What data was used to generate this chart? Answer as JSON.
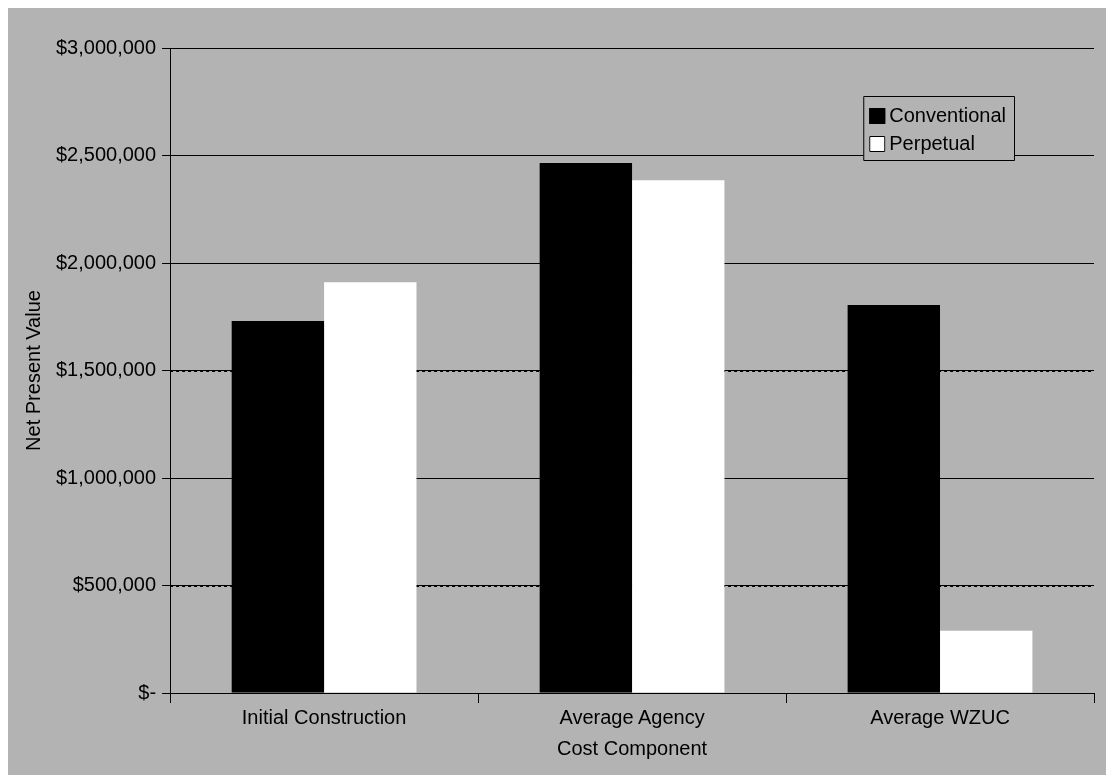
{
  "chart_data": {
    "type": "bar",
    "xlabel": "Cost Component",
    "ylabel": "Net Present Value",
    "categories": [
      "Initial Construction",
      "Average Agency",
      "Average WZUC"
    ],
    "series": [
      {
        "name": "Conventional",
        "color": "#000000",
        "values": [
          1730000,
          2465000,
          1805000
        ]
      },
      {
        "name": "Perpetual",
        "color": "#ffffff",
        "values": [
          1910000,
          2385000,
          290000
        ]
      }
    ],
    "ylim": [
      0,
      3000000
    ],
    "yticks": [
      {
        "value": 0,
        "label": "$-"
      },
      {
        "value": 500000,
        "label": "$500,000"
      },
      {
        "value": 1000000,
        "label": "$1,000,000"
      },
      {
        "value": 1500000,
        "label": "$1,500,000"
      },
      {
        "value": 2000000,
        "label": "$2,000,000"
      },
      {
        "value": 2500000,
        "label": "$2,500,000"
      },
      {
        "value": 3000000,
        "label": "$3,000,000"
      }
    ],
    "grid": "y",
    "legend": "top right"
  }
}
